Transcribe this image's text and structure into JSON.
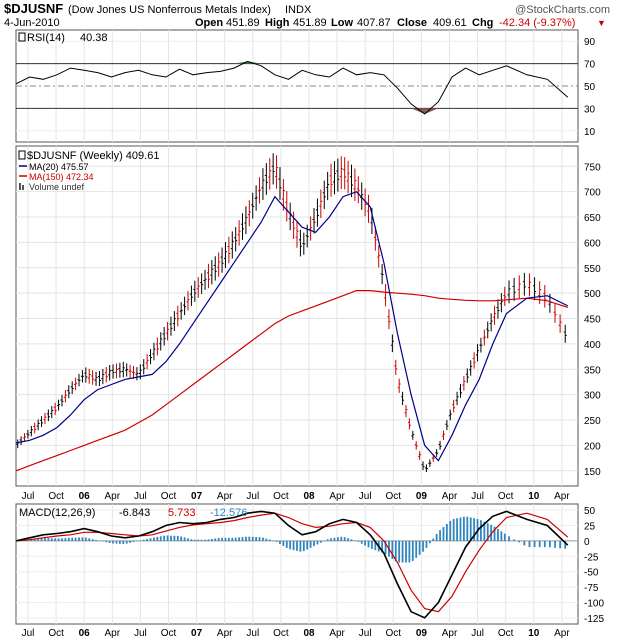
{
  "header": {
    "symbol": "$DJUSNF",
    "name": "(Dow Jones US Nonferrous Metals Index)",
    "exchange": "INDX",
    "date": "4-Jun-2010",
    "watermark": "@StockCharts.com",
    "open_label": "Open",
    "open_value": "451.89",
    "high_label": "High",
    "high_value": "451.89",
    "low_label": "Low",
    "low_value": "407.87",
    "close_label": "Close",
    "close_value": "409.61",
    "chg_label": "Chg",
    "chg_value": "-42.34 (-9.37%)",
    "chg_arrow": "▼"
  },
  "x_axis_labels": [
    "Jul",
    "Oct",
    "06",
    "Apr",
    "Jul",
    "Oct",
    "07",
    "Apr",
    "Jul",
    "Oct",
    "08",
    "Apr",
    "Jul",
    "Oct",
    "09",
    "Apr",
    "Jul",
    "Oct",
    "10",
    "Apr"
  ],
  "chart_data": [
    {
      "type": "line",
      "panel": "rsi",
      "title": "RSI(14) 40.38",
      "legend_label": "RSI(14)",
      "legend_value": "40.38",
      "ylim": [
        0,
        100
      ],
      "yticks": [
        "90",
        "70",
        "50",
        "30",
        "10"
      ],
      "overbought": 70,
      "oversold": 30,
      "x": [
        0,
        8,
        16,
        24,
        32,
        40,
        48,
        56,
        64,
        72,
        80,
        88,
        96,
        104,
        112,
        120,
        128,
        136,
        144,
        152,
        160,
        168,
        176,
        184,
        192,
        200,
        208,
        216,
        224,
        232,
        240,
        248,
        256,
        264,
        272,
        280,
        288,
        300,
        312,
        324
      ],
      "values": [
        52,
        58,
        56,
        60,
        66,
        64,
        62,
        58,
        62,
        64,
        60,
        58,
        65,
        60,
        62,
        63,
        66,
        72,
        68,
        60,
        56,
        64,
        60,
        58,
        66,
        60,
        62,
        60,
        48,
        34,
        25,
        36,
        58,
        66,
        60,
        64,
        68,
        60,
        56,
        40
      ],
      "colors": {
        "line": "#000000",
        "above_fill": "#4d7a4d",
        "below_fill": "#8b5a5a"
      }
    },
    {
      "type": "bar",
      "panel": "price",
      "title": "$DJUSNF (Weekly) 409.61",
      "legend": [
        {
          "label": "$DJUSNF (Weekly) 409.61",
          "color": "#000000"
        },
        {
          "label": "MA(20) 475.57",
          "color": "#00008b"
        },
        {
          "label": "MA(150) 472.34",
          "color": "#cc0000"
        },
        {
          "label": "Volume undef",
          "color": "#555555"
        }
      ],
      "ylim": [
        120,
        790
      ],
      "yticks": [
        "750",
        "700",
        "650",
        "600",
        "550",
        "500",
        "450",
        "400",
        "350",
        "300",
        "250",
        "200",
        "150"
      ],
      "x": [
        0,
        8,
        16,
        24,
        32,
        40,
        48,
        56,
        64,
        72,
        80,
        88,
        96,
        104,
        112,
        120,
        128,
        136,
        144,
        152,
        160,
        168,
        176,
        184,
        192,
        200,
        208,
        216,
        224,
        232,
        240,
        248,
        256,
        264,
        272,
        280,
        288,
        300,
        312,
        324
      ],
      "close": [
        200,
        225,
        250,
        275,
        310,
        340,
        330,
        345,
        350,
        340,
        380,
        420,
        460,
        500,
        530,
        560,
        600,
        650,
        710,
        750,
        660,
        590,
        650,
        720,
        740,
        710,
        660,
        520,
        330,
        230,
        150,
        190,
        270,
        330,
        390,
        450,
        500,
        520,
        490,
        410
      ],
      "ma20": [
        205,
        210,
        220,
        235,
        260,
        290,
        310,
        320,
        330,
        335,
        340,
        365,
        400,
        440,
        480,
        520,
        560,
        600,
        640,
        690,
        660,
        630,
        620,
        650,
        690,
        700,
        670,
        560,
        420,
        300,
        200,
        170,
        220,
        280,
        330,
        400,
        460,
        490,
        495,
        475
      ],
      "ma150": [
        150,
        160,
        170,
        180,
        190,
        200,
        210,
        220,
        230,
        245,
        260,
        280,
        300,
        320,
        340,
        360,
        380,
        400,
        420,
        440,
        455,
        465,
        475,
        485,
        495,
        505,
        505,
        502,
        500,
        498,
        495,
        490,
        488,
        486,
        485,
        485,
        487,
        490,
        485,
        472
      ],
      "colors": {
        "up": "#000000",
        "down": "#cc0000",
        "ma20": "#00008b",
        "ma150": "#cc0000"
      }
    },
    {
      "type": "line",
      "panel": "macd",
      "title": "MACD(12,26,9) -6.843, 5.733, -12.576",
      "legend_label": "MACD(12,26,9)",
      "legend_macd": "-6.843",
      "legend_signal": "5.733",
      "legend_hist": "-12.576",
      "ylim": [
        -135,
        60
      ],
      "yticks": [
        "50",
        "25",
        "0",
        "-25",
        "-50",
        "-75",
        "-100",
        "-125"
      ],
      "x": [
        0,
        8,
        16,
        24,
        32,
        40,
        48,
        56,
        64,
        72,
        80,
        88,
        96,
        104,
        112,
        120,
        128,
        136,
        144,
        152,
        160,
        168,
        176,
        184,
        192,
        200,
        208,
        216,
        224,
        232,
        240,
        248,
        256,
        264,
        272,
        280,
        288,
        300,
        312,
        324
      ],
      "macd": [
        0,
        5,
        10,
        12,
        15,
        20,
        15,
        8,
        5,
        8,
        15,
        25,
        30,
        28,
        30,
        35,
        38,
        45,
        48,
        45,
        25,
        10,
        15,
        28,
        35,
        30,
        10,
        -20,
        -70,
        -115,
        -125,
        -100,
        -55,
        -10,
        20,
        40,
        48,
        35,
        25,
        -7
      ],
      "signal": [
        0,
        2,
        5,
        8,
        10,
        14,
        14,
        12,
        10,
        8,
        10,
        16,
        22,
        26,
        28,
        30,
        33,
        38,
        42,
        45,
        38,
        28,
        22,
        24,
        28,
        30,
        22,
        0,
        -35,
        -80,
        -110,
        -115,
        -90,
        -50,
        -15,
        15,
        38,
        45,
        35,
        6
      ],
      "histogram": [
        0,
        3,
        5,
        4,
        5,
        6,
        1,
        -4,
        -5,
        0,
        5,
        9,
        8,
        2,
        2,
        5,
        5,
        7,
        6,
        0,
        -13,
        -18,
        -7,
        4,
        7,
        0,
        -12,
        -20,
        -35,
        -35,
        -15,
        15,
        35,
        40,
        35,
        25,
        10,
        -10,
        -10,
        -13
      ],
      "colors": {
        "macd": "#000000",
        "signal": "#cc0000",
        "histogram": "#2e86c1"
      }
    }
  ]
}
